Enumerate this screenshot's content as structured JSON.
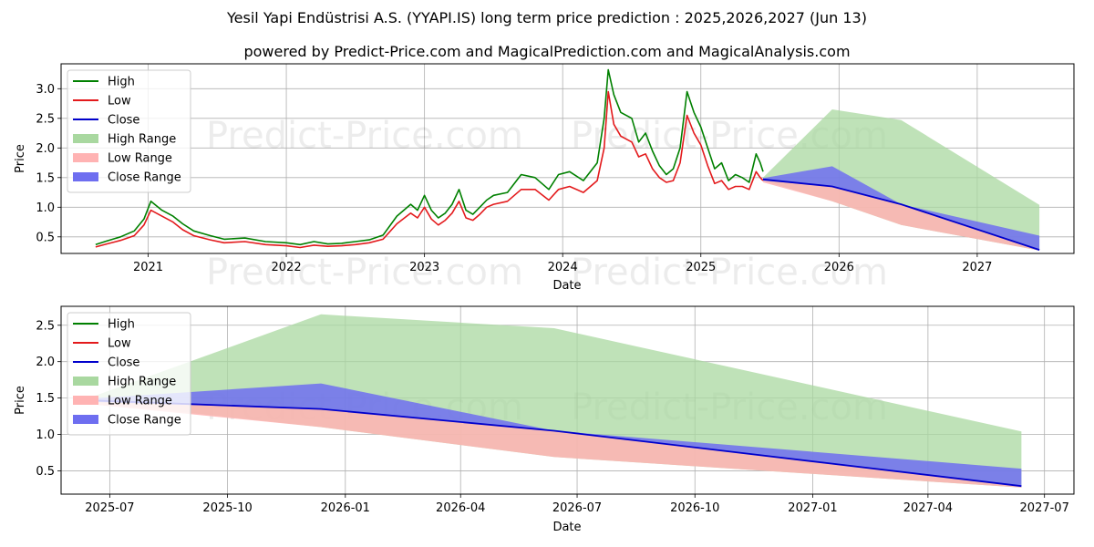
{
  "title_line1": "Yesil Yapi Endüstrisi A.S. (YYAPI.IS) long term price prediction : 2025,2026,2027 (Jun 13)",
  "title_line2": "powered by Predict-Price.com and MagicalPrediction.com and MagicalAnalysis.com",
  "watermark": "Predict-Price.com",
  "colors": {
    "high": "#008000",
    "low": "#e31a1c",
    "close": "#0000cc",
    "high_range": "#a9d8a0",
    "low_range": "#ffb3b3",
    "close_range": "#6e6ef0"
  },
  "legend": [
    "High",
    "Low",
    "Close",
    "High Range",
    "Low Range",
    "Close Range"
  ],
  "chart_data": [
    {
      "type": "line",
      "title": "",
      "xlabel": "Date",
      "ylabel": "Price",
      "x_ticks": [
        "2021",
        "2022",
        "2023",
        "2024",
        "2025",
        "2026",
        "2027"
      ],
      "x_tick_years": [
        2021,
        2022,
        2023,
        2024,
        2025,
        2026,
        2027
      ],
      "xlim": [
        2020.37,
        2027.7
      ],
      "ylim": [
        0.22,
        3.42
      ],
      "y_ticks": [
        "0.5",
        "1.0",
        "1.5",
        "2.0",
        "2.5",
        "3.0"
      ],
      "y_tick_values": [
        0.5,
        1.0,
        1.5,
        2.0,
        2.5,
        3.0
      ],
      "grid": true,
      "legend_position": "top-left",
      "historical": {
        "t": [
          2020.62,
          2020.7,
          2020.8,
          2020.9,
          2020.97,
          2021.02,
          2021.1,
          2021.18,
          2021.25,
          2021.33,
          2021.45,
          2021.55,
          2021.7,
          2021.85,
          2022.0,
          2022.1,
          2022.2,
          2022.3,
          2022.4,
          2022.5,
          2022.6,
          2022.7,
          2022.8,
          2022.9,
          2022.95,
          2023.0,
          2023.05,
          2023.1,
          2023.15,
          2023.2,
          2023.25,
          2023.3,
          2023.35,
          2023.4,
          2023.45,
          2023.5,
          2023.6,
          2023.7,
          2023.8,
          2023.9,
          2023.97,
          2024.05,
          2024.15,
          2024.25,
          2024.3,
          2024.33,
          2024.37,
          2024.42,
          2024.5,
          2024.55,
          2024.6,
          2024.65,
          2024.7,
          2024.75,
          2024.8,
          2024.85,
          2024.9,
          2024.95,
          2025.0,
          2025.05,
          2025.1,
          2025.15,
          2025.2,
          2025.25,
          2025.3,
          2025.35,
          2025.4,
          2025.43,
          2025.45
        ],
        "high": [
          0.37,
          0.43,
          0.5,
          0.6,
          0.8,
          1.1,
          0.95,
          0.85,
          0.72,
          0.6,
          0.52,
          0.46,
          0.48,
          0.42,
          0.4,
          0.37,
          0.42,
          0.38,
          0.39,
          0.42,
          0.45,
          0.53,
          0.85,
          1.05,
          0.95,
          1.2,
          0.95,
          0.82,
          0.9,
          1.05,
          1.3,
          0.95,
          0.88,
          1.0,
          1.12,
          1.2,
          1.25,
          1.55,
          1.5,
          1.3,
          1.55,
          1.6,
          1.45,
          1.75,
          2.5,
          3.32,
          2.9,
          2.6,
          2.5,
          2.1,
          2.25,
          1.95,
          1.7,
          1.55,
          1.65,
          2.0,
          2.95,
          2.6,
          2.35,
          2.0,
          1.65,
          1.75,
          1.45,
          1.55,
          1.5,
          1.42,
          1.9,
          1.75,
          1.6
        ],
        "low": [
          0.33,
          0.38,
          0.44,
          0.52,
          0.7,
          0.95,
          0.85,
          0.75,
          0.62,
          0.52,
          0.45,
          0.4,
          0.42,
          0.37,
          0.35,
          0.32,
          0.36,
          0.34,
          0.35,
          0.37,
          0.4,
          0.46,
          0.72,
          0.9,
          0.82,
          1.0,
          0.8,
          0.7,
          0.78,
          0.9,
          1.1,
          0.82,
          0.78,
          0.88,
          1.0,
          1.05,
          1.1,
          1.3,
          1.3,
          1.12,
          1.3,
          1.35,
          1.25,
          1.45,
          2.0,
          2.95,
          2.4,
          2.2,
          2.1,
          1.85,
          1.9,
          1.65,
          1.5,
          1.42,
          1.45,
          1.75,
          2.55,
          2.25,
          2.05,
          1.7,
          1.4,
          1.45,
          1.3,
          1.35,
          1.35,
          1.3,
          1.6,
          1.5,
          1.45
        ]
      },
      "forecast": {
        "t": [
          2025.45,
          2025.95,
          2026.45,
          2027.45
        ],
        "close": [
          1.47,
          1.35,
          1.05,
          0.28
        ],
        "high_range_upper": [
          1.5,
          2.65,
          2.47,
          1.04
        ],
        "high_range_lower": [
          1.45,
          1.1,
          0.7,
          0.27
        ],
        "low_range_upper": [
          1.46,
          1.35,
          1.05,
          0.28
        ],
        "low_range_lower": [
          1.42,
          1.1,
          0.7,
          0.27
        ],
        "close_range_upper": [
          1.49,
          1.69,
          1.05,
          0.52
        ],
        "close_range_lower": [
          1.45,
          1.35,
          1.05,
          0.28
        ]
      }
    },
    {
      "type": "line",
      "title": "",
      "xlabel": "Date",
      "ylabel": "Price",
      "x_ticks": [
        "2025-07",
        "2025-10",
        "2026-01",
        "2026-04",
        "2026-07",
        "2026-10",
        "2027-01",
        "2027-04",
        "2027-07"
      ],
      "x_tick_dates": [
        "2025-07-01",
        "2025-10-01",
        "2026-01-01",
        "2026-04-01",
        "2026-07-01",
        "2026-10-01",
        "2027-01-01",
        "2027-04-01",
        "2027-07-01"
      ],
      "xlim": [
        "2025-05-24",
        "2027-07-24"
      ],
      "ylim": [
        0.18,
        2.76
      ],
      "y_ticks": [
        "0.5",
        "1.0",
        "1.5",
        "2.0",
        "2.5"
      ],
      "y_tick_values": [
        0.5,
        1.0,
        1.5,
        2.0,
        2.5
      ],
      "grid": true,
      "legend_position": "top-left",
      "forecast": {
        "dates": [
          "2025-06-13",
          "2025-12-13",
          "2026-06-13",
          "2027-06-13"
        ],
        "close": [
          1.47,
          1.35,
          1.05,
          0.29
        ],
        "high_range_upper": [
          1.49,
          2.65,
          2.46,
          1.04
        ],
        "high_range_lower": [
          1.45,
          1.1,
          0.69,
          0.27
        ],
        "low_range_upper": [
          1.46,
          1.35,
          1.05,
          0.29
        ],
        "low_range_lower": [
          1.42,
          1.1,
          0.69,
          0.27
        ],
        "close_range_upper": [
          1.49,
          1.7,
          1.05,
          0.53
        ],
        "close_range_lower": [
          1.45,
          1.35,
          1.05,
          0.29
        ]
      }
    }
  ]
}
